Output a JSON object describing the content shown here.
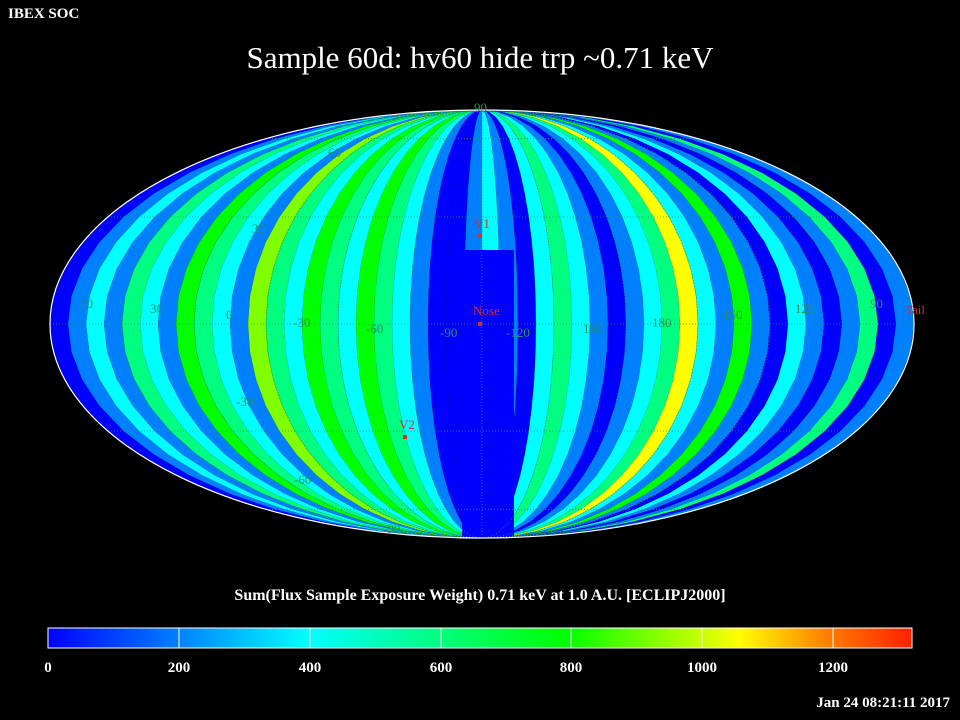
{
  "header": {
    "soc_label": "IBEX SOC",
    "title": "Sample 60d: hv60 hide trp ~0.71 keV"
  },
  "map": {
    "projection": "Mollweide (all-sky)",
    "latitude_labels": [
      "90",
      "60",
      "30",
      "-30",
      "-60",
      "-90"
    ],
    "longitude_labels": [
      "60",
      "30",
      "0",
      "-30",
      "-60",
      "-90",
      "-120",
      "150",
      "180",
      "150",
      "120",
      "90"
    ],
    "markers": [
      {
        "name": "V1"
      },
      {
        "name": "Nose"
      },
      {
        "name": "V2"
      },
      {
        "name": "Tail"
      }
    ],
    "colors": {
      "grid": "#2f8f5a",
      "marker": "#d03030",
      "outline": "#ffffff"
    }
  },
  "colorbar": {
    "title": "Sum(Flux Sample Exposure Weight)  0.71 keV at 1.0 A.U. [ECLIPJ2000]",
    "ticks": [
      "0",
      "200",
      "400",
      "600",
      "800",
      "1000",
      "1200"
    ],
    "range": [
      0,
      1320
    ],
    "colors": [
      "#0000ff",
      "#0080ff",
      "#00ffff",
      "#00ff80",
      "#00ff00",
      "#80ff00",
      "#ffff00",
      "#ff8000",
      "#ff2000"
    ]
  },
  "footer": {
    "timestamp": "Jan 24 08:21:11 2017"
  }
}
